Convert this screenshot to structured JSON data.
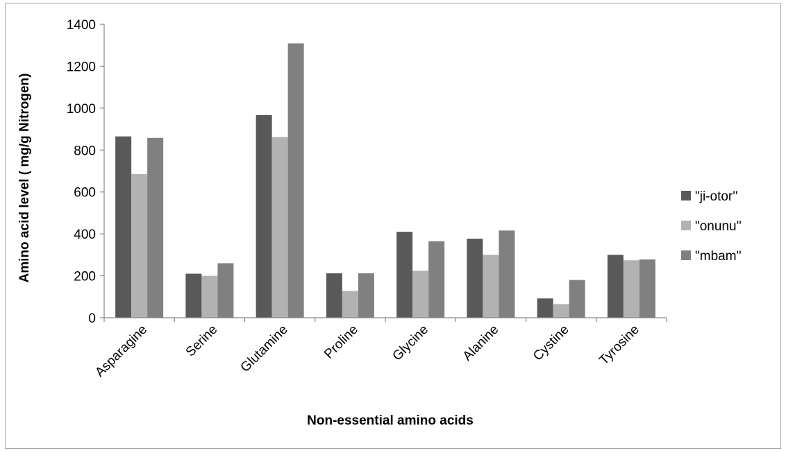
{
  "chart_data": {
    "type": "bar",
    "title": "",
    "xlabel": "Non-essential amino acids",
    "ylabel": "Amino acid level ( mg/g Nitrogen)",
    "ylim": [
      0,
      1400
    ],
    "yticks": [
      0,
      200,
      400,
      600,
      800,
      1000,
      1200,
      1400
    ],
    "ytick_labels": [
      "0",
      "200",
      "400",
      "600",
      "800",
      "1000",
      "1200",
      "1400"
    ],
    "grid": false,
    "legend_position": "right",
    "categories": [
      "Asparagine",
      "Serine",
      "Glutamine",
      "Proline",
      "Glycine",
      "Alanine",
      "Cystine",
      "Tyrosine"
    ],
    "series": [
      {
        "name": "\"ji-otor''",
        "color": "#595959",
        "values": [
          865,
          210,
          967,
          212,
          410,
          377,
          92,
          300
        ]
      },
      {
        "name": "\"onunu''",
        "color": "#b2b2b2",
        "values": [
          685,
          200,
          862,
          128,
          224,
          300,
          65,
          274
        ]
      },
      {
        "name": "\"mbam''",
        "color": "#808080",
        "values": [
          858,
          260,
          1309,
          212,
          365,
          416,
          180,
          278
        ]
      }
    ]
  }
}
